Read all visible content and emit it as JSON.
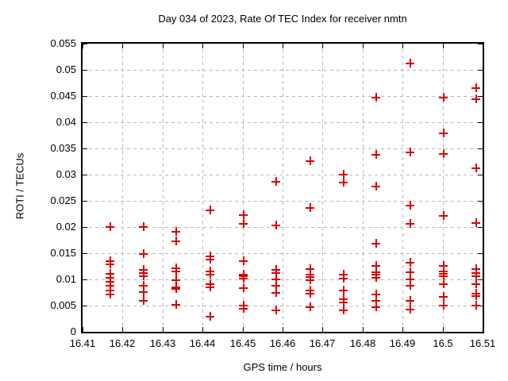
{
  "title": "Day 034 of 2023, Rate Of TEC Index for receiver nmtn",
  "chart_data": {
    "type": "scatter",
    "title": "Day 034 of 2023, Rate Of TEC Index for receiver nmtn",
    "xlabel": "GPS time / hours",
    "ylabel": "ROTI / TECUs",
    "xlim": [
      16.41,
      16.51
    ],
    "ylim": [
      0,
      0.055
    ],
    "xticks": [
      16.41,
      16.42,
      16.43,
      16.44,
      16.45,
      16.46,
      16.47,
      16.48,
      16.49,
      16.5,
      16.51
    ],
    "xtick_labels": [
      "16.41",
      "16.42",
      "16.43",
      "16.44",
      "16.45",
      "16.46",
      "16.47",
      "16.48",
      "16.49",
      "16.5",
      "16.51"
    ],
    "yticks": [
      0,
      0.005,
      0.01,
      0.015,
      0.02,
      0.025,
      0.03,
      0.035,
      0.04,
      0.045,
      0.05,
      0.055
    ],
    "ytick_labels": [
      "0",
      "0.005",
      "0.01",
      "0.015",
      "0.02",
      "0.025",
      "0.03",
      "0.035",
      "0.04",
      "0.045",
      "0.05",
      "0.055"
    ],
    "grid": true,
    "legend": "none",
    "marker": "plus",
    "marker_color": "#dd0000",
    "grid_color": "#b8b8b8",
    "series": [
      {
        "name": "ROTI",
        "points": [
          [
            16.4167,
            0.0202
          ],
          [
            16.4167,
            0.0136
          ],
          [
            16.4167,
            0.013
          ],
          [
            16.4167,
            0.0112
          ],
          [
            16.4167,
            0.0105
          ],
          [
            16.4167,
            0.0097
          ],
          [
            16.4167,
            0.0089
          ],
          [
            16.4167,
            0.0081
          ],
          [
            16.4167,
            0.0073
          ],
          [
            16.425,
            0.0202
          ],
          [
            16.425,
            0.015
          ],
          [
            16.425,
            0.0119
          ],
          [
            16.425,
            0.0113
          ],
          [
            16.425,
            0.0107
          ],
          [
            16.425,
            0.009
          ],
          [
            16.425,
            0.0077
          ],
          [
            16.425,
            0.0061
          ],
          [
            16.4333,
            0.0192
          ],
          [
            16.4333,
            0.0175
          ],
          [
            16.4333,
            0.0123
          ],
          [
            16.4333,
            0.0117
          ],
          [
            16.4333,
            0.01
          ],
          [
            16.4333,
            0.0087
          ],
          [
            16.4333,
            0.0084
          ],
          [
            16.4333,
            0.0053
          ],
          [
            16.4417,
            0.0233
          ],
          [
            16.4417,
            0.0146
          ],
          [
            16.4417,
            0.014
          ],
          [
            16.4417,
            0.0116
          ],
          [
            16.4417,
            0.011
          ],
          [
            16.4417,
            0.0093
          ],
          [
            16.4417,
            0.0086
          ],
          [
            16.4417,
            0.0031
          ],
          [
            16.45,
            0.0224
          ],
          [
            16.45,
            0.0208
          ],
          [
            16.45,
            0.0137
          ],
          [
            16.45,
            0.0111
          ],
          [
            16.45,
            0.0107
          ],
          [
            16.45,
            0.0103
          ],
          [
            16.45,
            0.0085
          ],
          [
            16.45,
            0.0052
          ],
          [
            16.45,
            0.0046
          ],
          [
            16.4583,
            0.0288
          ],
          [
            16.4583,
            0.0204
          ],
          [
            16.4583,
            0.012
          ],
          [
            16.4583,
            0.0114
          ],
          [
            16.4583,
            0.0101
          ],
          [
            16.4583,
            0.0089
          ],
          [
            16.4583,
            0.0076
          ],
          [
            16.4583,
            0.0043
          ],
          [
            16.4667,
            0.0328
          ],
          [
            16.4667,
            0.0238
          ],
          [
            16.4667,
            0.0121
          ],
          [
            16.4667,
            0.011
          ],
          [
            16.4667,
            0.0106
          ],
          [
            16.4667,
            0.01
          ],
          [
            16.4667,
            0.008
          ],
          [
            16.4667,
            0.0074
          ],
          [
            16.4667,
            0.0048
          ],
          [
            16.475,
            0.0302
          ],
          [
            16.475,
            0.0287
          ],
          [
            16.475,
            0.011
          ],
          [
            16.475,
            0.0103
          ],
          [
            16.475,
            0.008
          ],
          [
            16.475,
            0.0064
          ],
          [
            16.475,
            0.0058
          ],
          [
            16.475,
            0.0043
          ],
          [
            16.4833,
            0.0449
          ],
          [
            16.4833,
            0.034
          ],
          [
            16.4833,
            0.0279
          ],
          [
            16.4833,
            0.0169
          ],
          [
            16.4833,
            0.0127
          ],
          [
            16.4833,
            0.0115
          ],
          [
            16.4833,
            0.011
          ],
          [
            16.4833,
            0.0105
          ],
          [
            16.4833,
            0.0073
          ],
          [
            16.4833,
            0.0061
          ],
          [
            16.4833,
            0.0048
          ],
          [
            16.4917,
            0.0513
          ],
          [
            16.4917,
            0.0344
          ],
          [
            16.4917,
            0.0242
          ],
          [
            16.4917,
            0.0207
          ],
          [
            16.4917,
            0.0134
          ],
          [
            16.4917,
            0.0115
          ],
          [
            16.4917,
            0.0101
          ],
          [
            16.4917,
            0.0089
          ],
          [
            16.4917,
            0.006
          ],
          [
            16.4917,
            0.0044
          ],
          [
            16.5,
            0.0449
          ],
          [
            16.5,
            0.038
          ],
          [
            16.5,
            0.0341
          ],
          [
            16.5,
            0.0222
          ],
          [
            16.5,
            0.0127
          ],
          [
            16.5,
            0.0116
          ],
          [
            16.5,
            0.0112
          ],
          [
            16.5,
            0.0108
          ],
          [
            16.5,
            0.0093
          ],
          [
            16.5,
            0.0068
          ],
          [
            16.5,
            0.0052
          ],
          [
            16.5083,
            0.0467
          ],
          [
            16.5083,
            0.0445
          ],
          [
            16.5083,
            0.0314
          ],
          [
            16.5083,
            0.0209
          ],
          [
            16.5083,
            0.0121
          ],
          [
            16.5083,
            0.0113
          ],
          [
            16.5083,
            0.0107
          ],
          [
            16.5083,
            0.0093
          ],
          [
            16.5083,
            0.0075
          ],
          [
            16.5083,
            0.0069
          ],
          [
            16.5083,
            0.0051
          ]
        ]
      }
    ]
  }
}
